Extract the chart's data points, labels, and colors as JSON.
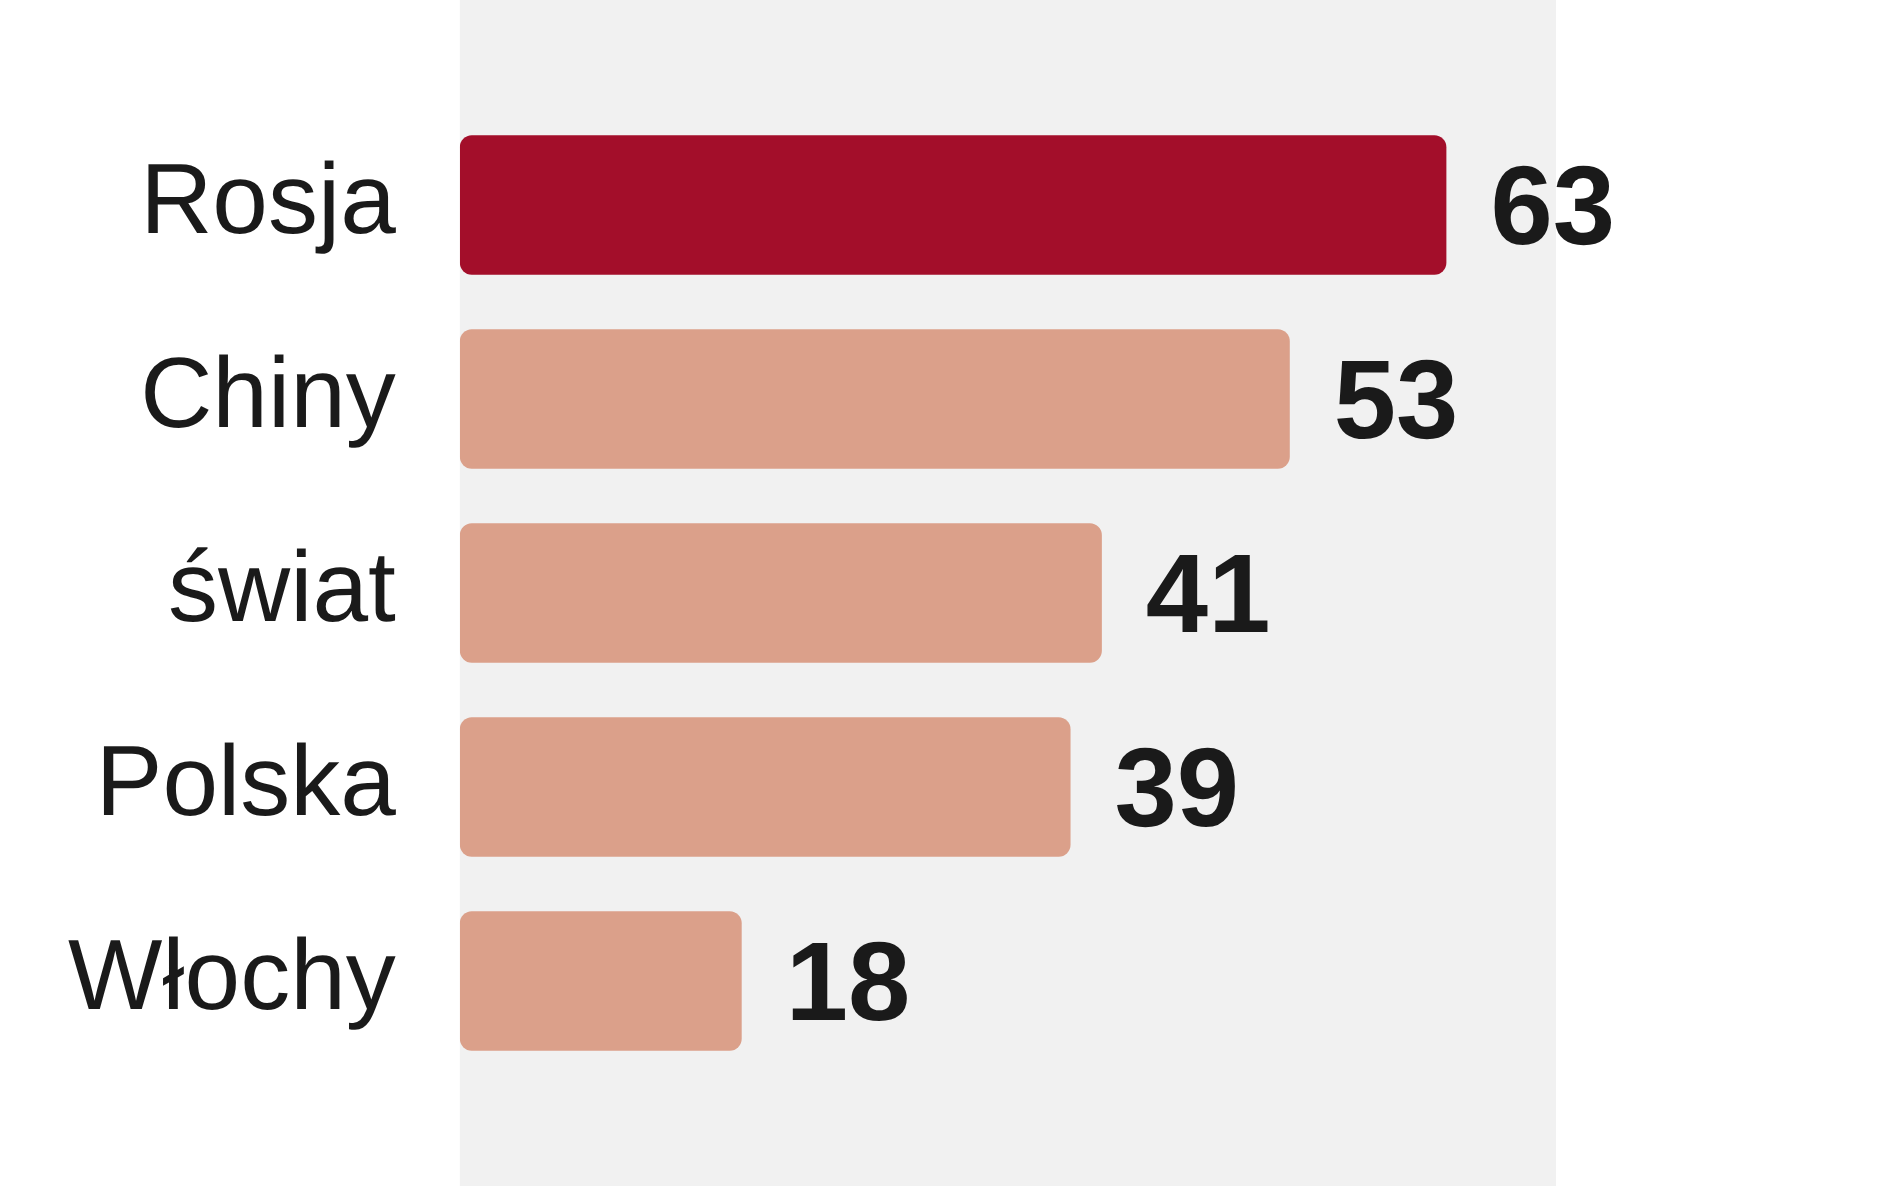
{
  "chart_data": {
    "type": "bar",
    "orientation": "horizontal",
    "categories": [
      "Rosja",
      "Chiny",
      "świat",
      "Polska",
      "Włochy"
    ],
    "values": [
      63,
      53,
      41,
      39,
      18
    ],
    "colors": [
      "#a30e2a",
      "#dba08a",
      "#dba08a",
      "#dba08a",
      "#dba08a"
    ],
    "data_labels": true,
    "tick_labels": "y"
  }
}
